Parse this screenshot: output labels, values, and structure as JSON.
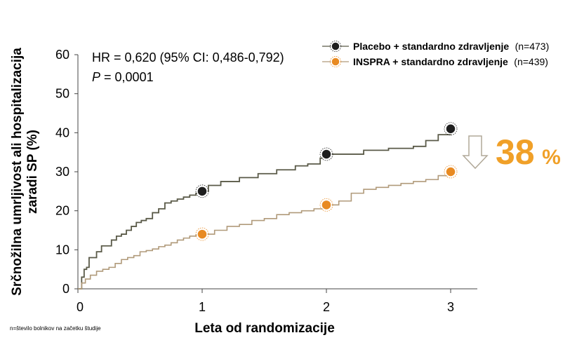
{
  "chart_data": {
    "type": "line",
    "ylabel_line1": "Srčnožilna umrljivost ali hospitalizacija",
    "ylabel_line2": "zaradi SP (%)",
    "xlabel": "Leta od randomizacije",
    "xlim": [
      0,
      3.2
    ],
    "ylim": [
      0,
      60
    ],
    "xticks": [
      0,
      1,
      2,
      3
    ],
    "yticks": [
      0,
      10,
      20,
      30,
      40,
      50,
      60
    ],
    "annotation": {
      "hr_text": "HR = 0,620 (95% CI: 0,486-0,792)",
      "p_label": "P",
      "p_value": " = 0,0001"
    },
    "reduction": {
      "value": "38",
      "unit": "%"
    },
    "footnote": "n=število bolnikov na začetku študije",
    "series": [
      {
        "name": "Placebo + standardno zdravljenje",
        "n": "(n=473)",
        "color": "#5a5a48",
        "marker_color": "#1e1e1e",
        "x": [
          0,
          0.03,
          0.05,
          0.07,
          0.09,
          0.11,
          0.15,
          0.19,
          0.23,
          0.27,
          0.31,
          0.35,
          0.39,
          0.43,
          0.47,
          0.51,
          0.55,
          0.6,
          0.65,
          0.7,
          0.75,
          0.8,
          0.85,
          0.9,
          0.95,
          1.0,
          1.05,
          1.15,
          1.3,
          1.45,
          1.6,
          1.75,
          1.85,
          1.95,
          2.0,
          2.1,
          2.3,
          2.5,
          2.7,
          2.8,
          2.9,
          3.0
        ],
        "y": [
          0,
          3,
          5,
          5.5,
          8,
          8,
          9.5,
          11,
          11,
          12.5,
          13.5,
          14,
          15,
          16,
          17,
          17.5,
          18,
          19.5,
          20.5,
          22,
          22.5,
          23,
          23.5,
          24,
          24.5,
          25,
          26.5,
          27.5,
          28.5,
          29.5,
          30.5,
          31.5,
          32,
          33.5,
          34.5,
          34.5,
          35.5,
          36,
          36.5,
          38,
          39.5,
          41
        ]
      },
      {
        "name": "INSPRA + standardno zdravljenje",
        "n": "(n=439)",
        "color": "#b09a7a",
        "marker_color": "#e88a22",
        "x": [
          0,
          0.03,
          0.06,
          0.1,
          0.15,
          0.2,
          0.25,
          0.3,
          0.35,
          0.4,
          0.45,
          0.5,
          0.55,
          0.6,
          0.65,
          0.7,
          0.75,
          0.8,
          0.85,
          0.9,
          0.95,
          1.0,
          1.1,
          1.2,
          1.3,
          1.4,
          1.5,
          1.6,
          1.7,
          1.8,
          1.9,
          2.0,
          2.1,
          2.2,
          2.3,
          2.4,
          2.5,
          2.6,
          2.7,
          2.8,
          2.9,
          3.0
        ],
        "y": [
          0,
          1.5,
          2.5,
          3.5,
          4.5,
          5,
          5.5,
          6.5,
          7.5,
          8,
          8.5,
          9.5,
          9.8,
          10.2,
          10.8,
          11.2,
          11.8,
          12.5,
          13,
          13.5,
          13.8,
          14,
          15,
          16,
          16.5,
          17.5,
          18,
          19,
          19.5,
          20,
          20.5,
          21.5,
          22.5,
          24.5,
          25.5,
          26,
          26.5,
          27,
          27.5,
          28,
          29,
          30
        ]
      }
    ],
    "markers": [
      {
        "series": 0,
        "x": 1,
        "y": 25
      },
      {
        "series": 0,
        "x": 2,
        "y": 34.5
      },
      {
        "series": 0,
        "x": 3,
        "y": 41
      },
      {
        "series": 1,
        "x": 1,
        "y": 14
      },
      {
        "series": 1,
        "x": 2,
        "y": 21.5
      },
      {
        "series": 1,
        "x": 3,
        "y": 30
      }
    ]
  }
}
